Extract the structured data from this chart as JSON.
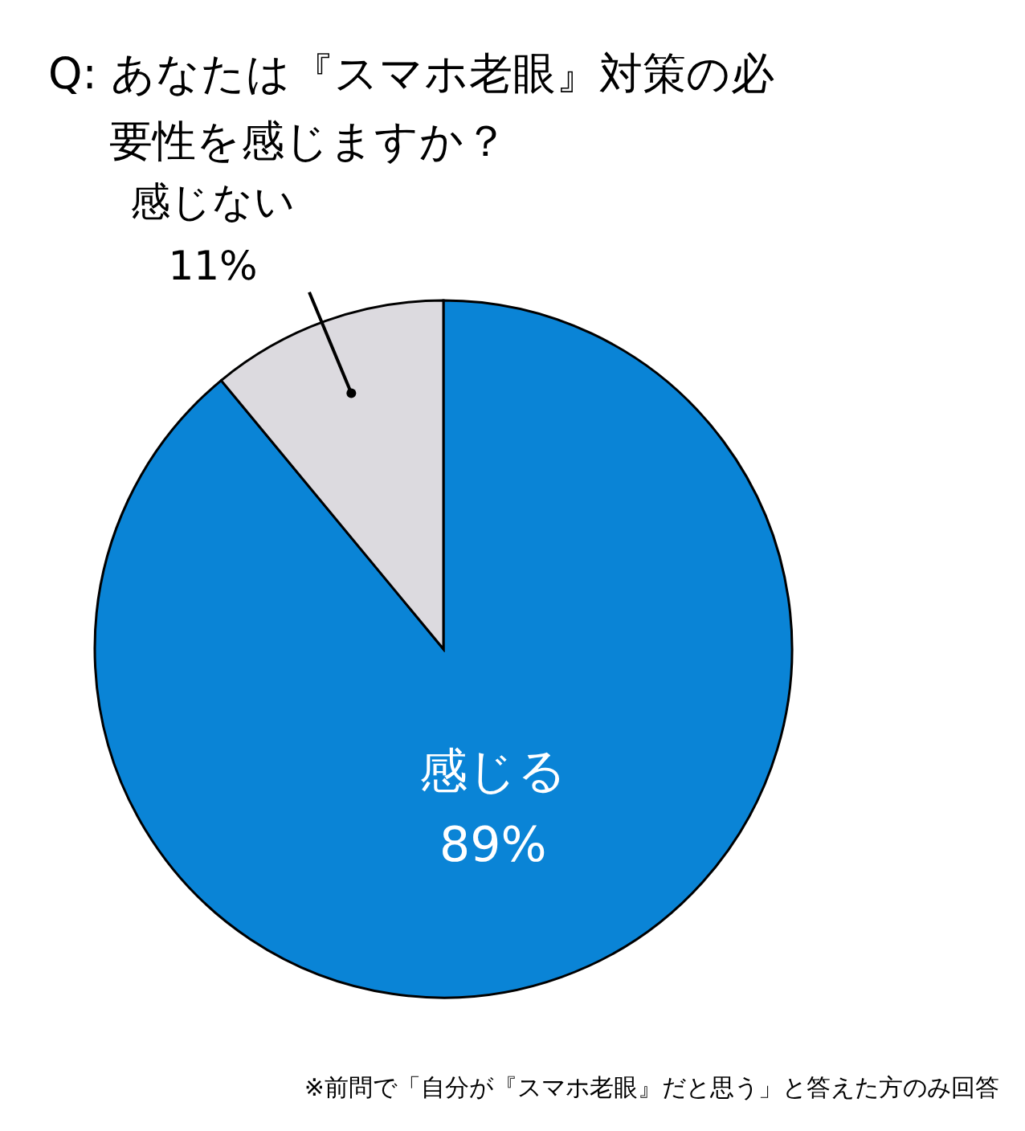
{
  "chart_data": {
    "type": "pie",
    "title": "Q: あなたは『スマホ老眼』対策の必要性を感じますか？",
    "categories": [
      "感じる",
      "感じない"
    ],
    "values": [
      89,
      11
    ],
    "value_labels": [
      "89%",
      "11%"
    ],
    "colors": [
      "#0a84d6",
      "#dcdadf"
    ],
    "annotations": [
      "※前問で「自分が『スマホ老眼』だと思う」と答えた方のみ回答"
    ]
  }
}
